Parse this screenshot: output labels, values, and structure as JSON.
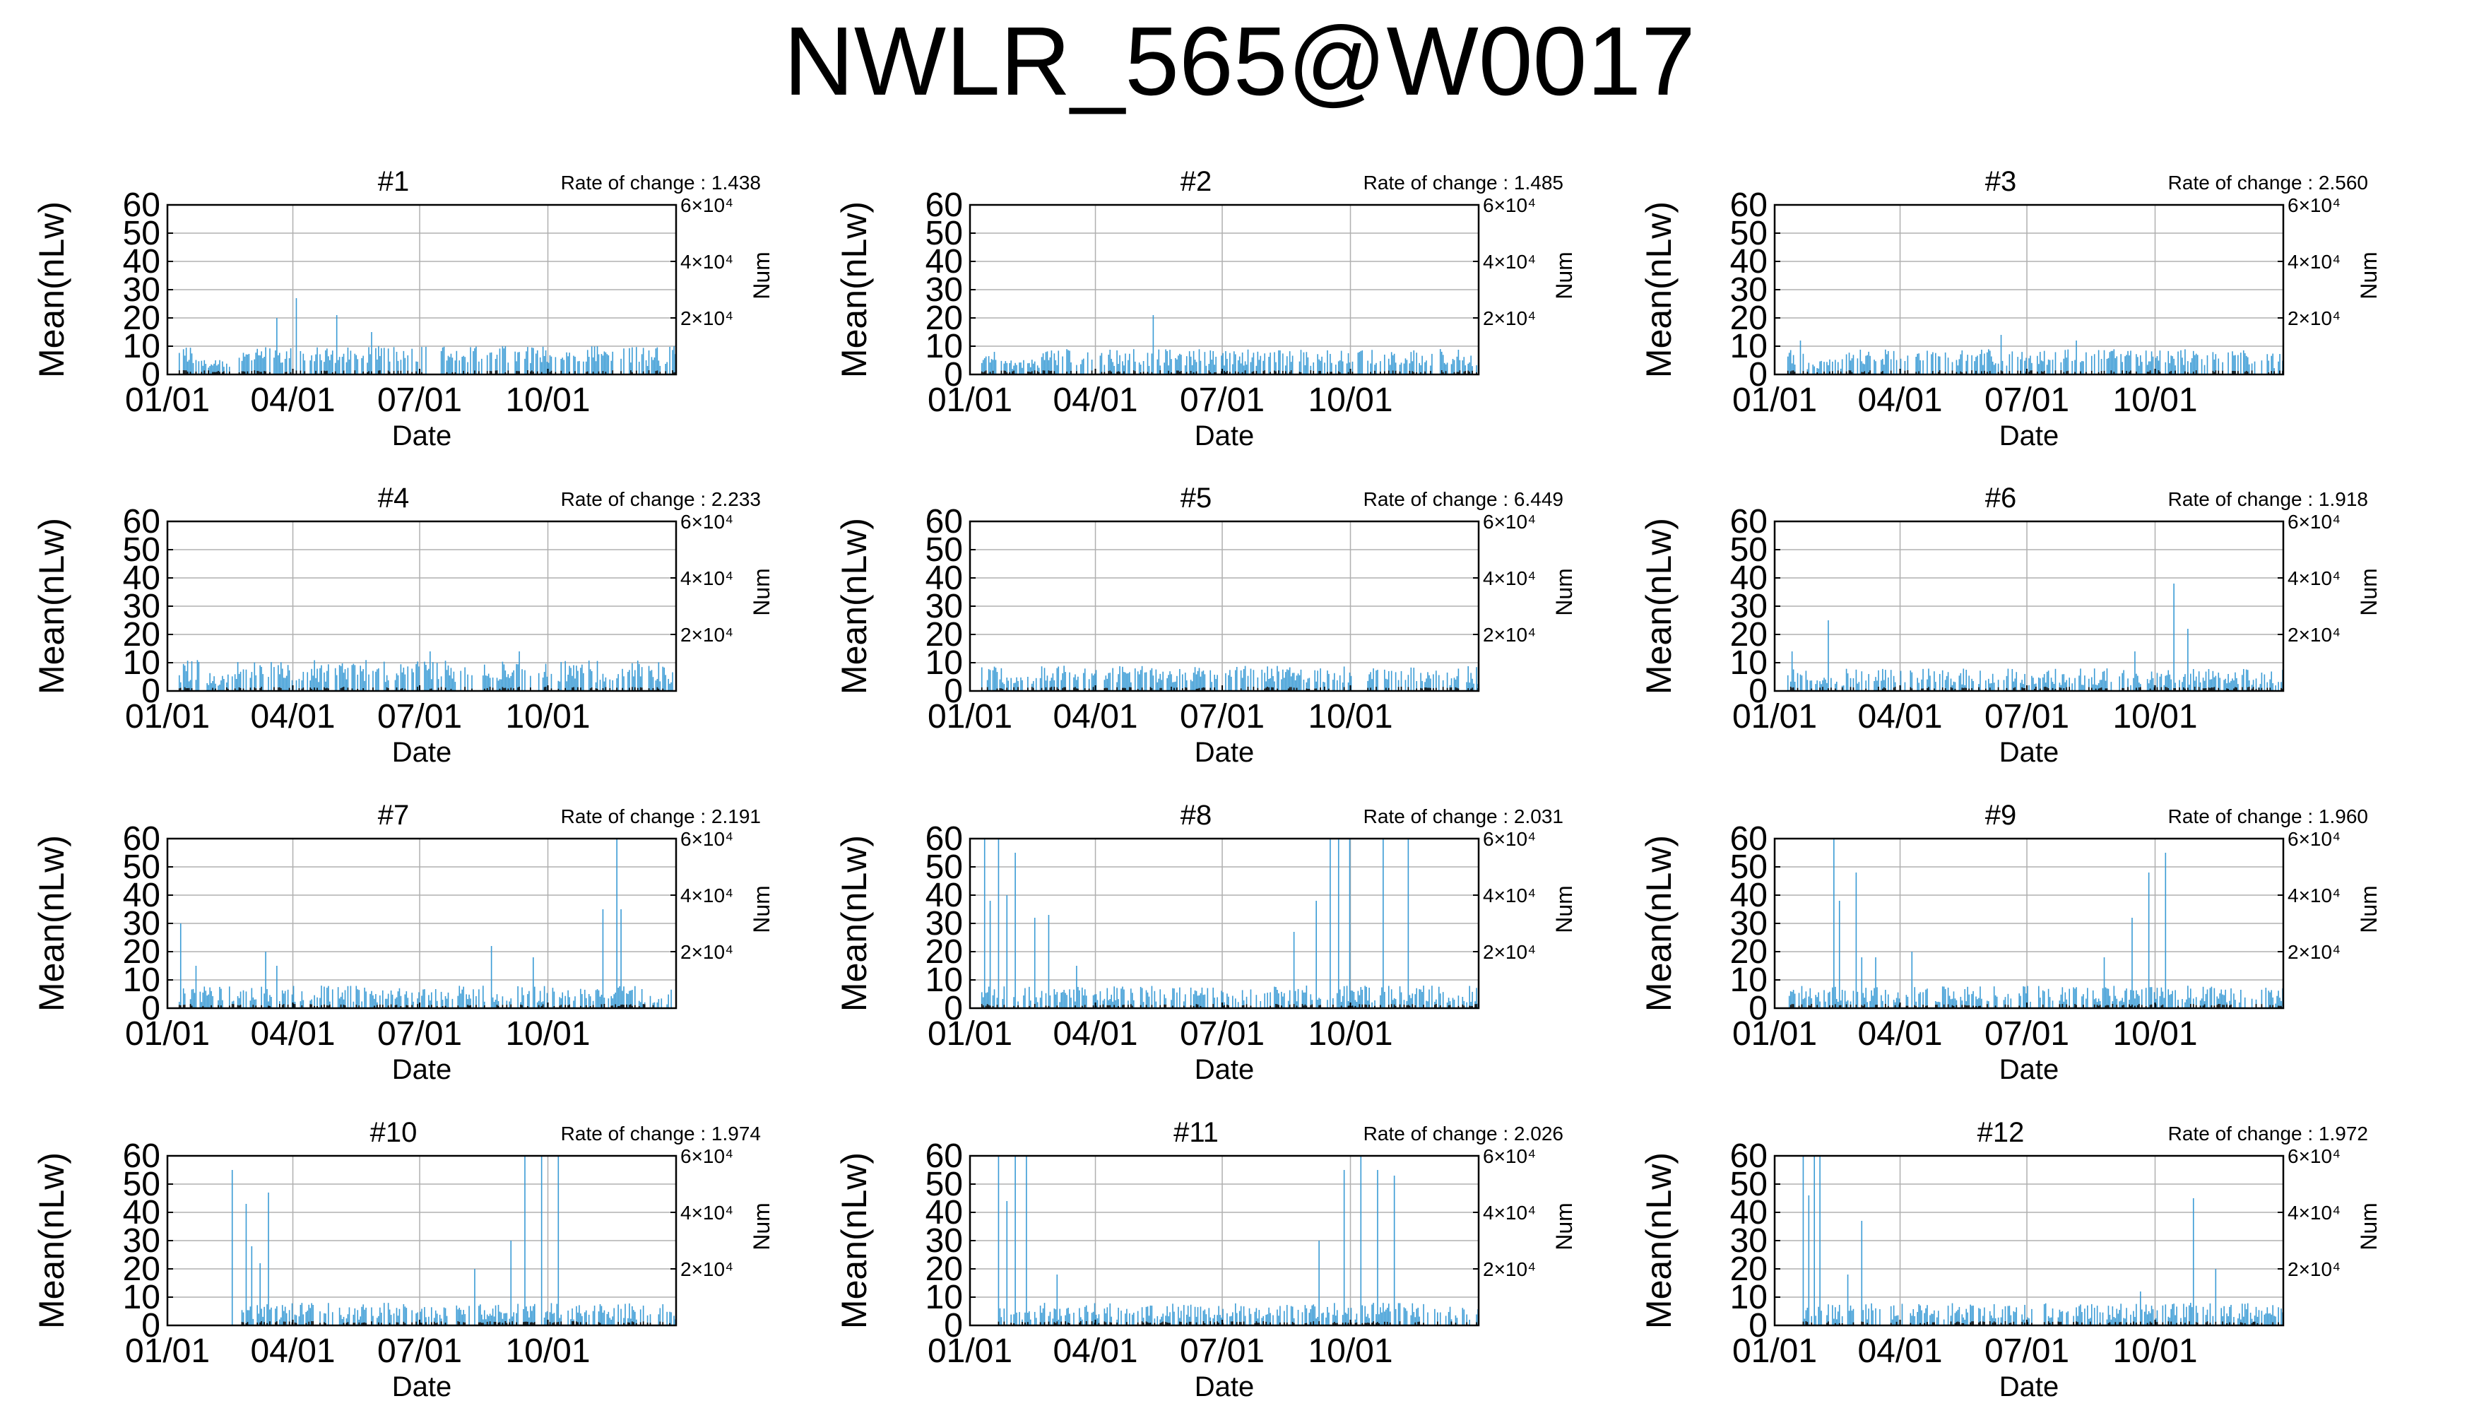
{
  "figure": {
    "title": "NWLR_565@W0017"
  },
  "axis_labels": {
    "ylabel_left": "Mean(nLw)",
    "ylabel_right": "Num",
    "xlabel": "Date",
    "rate_prefix": "Rate of change : "
  },
  "colors": {
    "bars": "#3a9bd5",
    "count_bars": "#000000",
    "grid": "#b0b0b0",
    "frame": "#000000"
  },
  "chart_data": [
    {
      "type": "bar",
      "title": "#1",
      "rate_of_change": "1.438",
      "x_ticks": [
        "01/01",
        "04/01",
        "07/01",
        "10/01"
      ],
      "ylim": [
        0,
        60
      ],
      "y_ticks": [
        0,
        10,
        20,
        30,
        40,
        50,
        60
      ],
      "y2_ticks": [
        "2×10⁴",
        "4×10⁴",
        "6×10⁴"
      ],
      "grid": true,
      "series": [
        {
          "values_profile": {
            "base": 7,
            "noise": 3,
            "start_day": 8,
            "spikes": [
              [
                78,
                20
              ],
              [
                92,
                27
              ],
              [
                121,
                21
              ],
              [
                146,
                15
              ]
            ]
          }
        }
      ]
    },
    {
      "type": "bar",
      "title": "#2",
      "rate_of_change": "1.485",
      "x_ticks": [
        "01/01",
        "04/01",
        "07/01",
        "10/01"
      ],
      "ylim": [
        0,
        60
      ],
      "y_ticks": [
        0,
        10,
        20,
        30,
        40,
        50,
        60
      ],
      "y2_ticks": [
        "2×10⁴",
        "4×10⁴",
        "6×10⁴"
      ],
      "grid": true,
      "series": [
        {
          "values_profile": {
            "base": 6,
            "noise": 3,
            "start_day": 8,
            "spikes": [
              [
                131,
                21
              ]
            ]
          }
        }
      ]
    },
    {
      "type": "bar",
      "title": "#3",
      "rate_of_change": "2.560",
      "x_ticks": [
        "01/01",
        "04/01",
        "07/01",
        "10/01"
      ],
      "ylim": [
        0,
        60
      ],
      "y_ticks": [
        0,
        10,
        20,
        30,
        40,
        50,
        60
      ],
      "y2_ticks": [
        "2×10⁴",
        "4×10⁴",
        "6×10⁴"
      ],
      "grid": true,
      "series": [
        {
          "values_profile": {
            "base": 6,
            "noise": 3,
            "start_day": 8,
            "spikes": [
              [
                18,
                12
              ],
              [
                162,
                14
              ],
              [
                216,
                12
              ]
            ]
          }
        }
      ]
    },
    {
      "type": "bar",
      "title": "#4",
      "rate_of_change": "2.233",
      "x_ticks": [
        "01/01",
        "04/01",
        "07/01",
        "10/01"
      ],
      "ylim": [
        0,
        60
      ],
      "y_ticks": [
        0,
        10,
        20,
        30,
        40,
        50,
        60
      ],
      "y2_ticks": [
        "2×10⁴",
        "4×10⁴",
        "6×10⁴"
      ],
      "grid": true,
      "series": [
        {
          "values_profile": {
            "base": 7,
            "noise": 4,
            "start_day": 8,
            "spikes": [
              [
                188,
                14
              ],
              [
                252,
                14
              ]
            ]
          }
        }
      ]
    },
    {
      "type": "bar",
      "title": "#5",
      "rate_of_change": "6.449",
      "x_ticks": [
        "01/01",
        "04/01",
        "07/01",
        "10/01"
      ],
      "ylim": [
        0,
        60
      ],
      "y_ticks": [
        0,
        10,
        20,
        30,
        40,
        50,
        60
      ],
      "y2_ticks": [
        "2×10⁴",
        "4×10⁴",
        "6×10⁴"
      ],
      "grid": true,
      "series": [
        {
          "values_profile": {
            "base": 6,
            "noise": 3,
            "start_day": 8,
            "spikes": []
          }
        }
      ]
    },
    {
      "type": "bar",
      "title": "#6",
      "rate_of_change": "1.918",
      "x_ticks": [
        "01/01",
        "04/01",
        "07/01",
        "10/01"
      ],
      "ylim": [
        0,
        60
      ],
      "y_ticks": [
        0,
        10,
        20,
        30,
        40,
        50,
        60
      ],
      "y2_ticks": [
        "2×10⁴",
        "4×10⁴",
        "6×10⁴"
      ],
      "grid": true,
      "series": [
        {
          "values_profile": {
            "base": 5,
            "noise": 3,
            "start_day": 8,
            "spikes": [
              [
                12,
                14
              ],
              [
                38,
                25
              ],
              [
                258,
                14
              ],
              [
                286,
                38
              ],
              [
                296,
                22
              ]
            ]
          }
        }
      ]
    },
    {
      "type": "bar",
      "title": "#7",
      "rate_of_change": "2.191",
      "x_ticks": [
        "01/01",
        "04/01",
        "07/01",
        "10/01"
      ],
      "ylim": [
        0,
        60
      ],
      "y_ticks": [
        0,
        10,
        20,
        30,
        40,
        50,
        60
      ],
      "y2_ticks": [
        "2×10⁴",
        "4×10⁴",
        "6×10⁴"
      ],
      "grid": true,
      "series": [
        {
          "values_profile": {
            "base": 5,
            "noise": 3,
            "start_day": 8,
            "spikes": [
              [
                9,
                30
              ],
              [
                20,
                15
              ],
              [
                70,
                20
              ],
              [
                78,
                15
              ],
              [
                232,
                22
              ],
              [
                262,
                18
              ],
              [
                312,
                35
              ],
              [
                322,
                60
              ],
              [
                325,
                35
              ]
            ]
          }
        }
      ]
    },
    {
      "type": "bar",
      "title": "#8",
      "rate_of_change": "2.031",
      "x_ticks": [
        "01/01",
        "04/01",
        "07/01",
        "10/01"
      ],
      "ylim": [
        0,
        60
      ],
      "y_ticks": [
        0,
        10,
        20,
        30,
        40,
        50,
        60
      ],
      "y2_ticks": [
        "2×10⁴",
        "4×10⁴",
        "6×10⁴"
      ],
      "grid": true,
      "series": [
        {
          "values_profile": {
            "base": 5,
            "noise": 3,
            "start_day": 8,
            "spikes": [
              [
                10,
                60
              ],
              [
                14,
                38
              ],
              [
                20,
                60
              ],
              [
                26,
                40
              ],
              [
                32,
                55
              ],
              [
                46,
                32
              ],
              [
                56,
                33
              ],
              [
                76,
                15
              ],
              [
                232,
                27
              ],
              [
                248,
                38
              ],
              [
                258,
                60
              ],
              [
                264,
                60
              ],
              [
                272,
                60
              ],
              [
                296,
                60
              ],
              [
                314,
                60
              ]
            ]
          }
        }
      ]
    },
    {
      "type": "bar",
      "title": "#9",
      "rate_of_change": "1.960",
      "x_ticks": [
        "01/01",
        "04/01",
        "07/01",
        "10/01"
      ],
      "ylim": [
        0,
        60
      ],
      "y_ticks": [
        0,
        10,
        20,
        30,
        40,
        50,
        60
      ],
      "y2_ticks": [
        "2×10⁴",
        "4×10⁴",
        "6×10⁴"
      ],
      "grid": true,
      "series": [
        {
          "values_profile": {
            "base": 5,
            "noise": 3,
            "start_day": 8,
            "spikes": [
              [
                42,
                60
              ],
              [
                46,
                38
              ],
              [
                58,
                48
              ],
              [
                62,
                18
              ],
              [
                72,
                18
              ],
              [
                98,
                20
              ],
              [
                236,
                18
              ],
              [
                256,
                32
              ],
              [
                268,
                48
              ],
              [
                280,
                55
              ]
            ]
          }
        }
      ]
    },
    {
      "type": "bar",
      "title": "#10",
      "rate_of_change": "1.974",
      "x_ticks": [
        "01/01",
        "04/01",
        "07/01",
        "10/01"
      ],
      "ylim": [
        0,
        60
      ],
      "y_ticks": [
        0,
        10,
        20,
        30,
        40,
        50,
        60
      ],
      "y2_ticks": [
        "2×10⁴",
        "4×10⁴",
        "6×10⁴"
      ],
      "grid": true,
      "series": [
        {
          "values_profile": {
            "base": 5,
            "noise": 3,
            "start_day": 46,
            "spikes": [
              [
                46,
                55
              ],
              [
                56,
                43
              ],
              [
                60,
                28
              ],
              [
                66,
                22
              ],
              [
                72,
                47
              ],
              [
                220,
                20
              ],
              [
                246,
                30
              ],
              [
                256,
                60
              ],
              [
                268,
                60
              ],
              [
                280,
                60
              ]
            ]
          }
        }
      ]
    },
    {
      "type": "bar",
      "title": "#11",
      "rate_of_change": "2.026",
      "x_ticks": [
        "01/01",
        "04/01",
        "07/01",
        "10/01"
      ],
      "ylim": [
        0,
        60
      ],
      "y_ticks": [
        0,
        10,
        20,
        30,
        40,
        50,
        60
      ],
      "y2_ticks": [
        "2×10⁴",
        "4×10⁴",
        "6×10⁴"
      ],
      "grid": true,
      "series": [
        {
          "values_profile": {
            "base": 5,
            "noise": 3,
            "start_day": 20,
            "spikes": [
              [
                20,
                60
              ],
              [
                26,
                44
              ],
              [
                32,
                60
              ],
              [
                40,
                60
              ],
              [
                62,
                18
              ],
              [
                250,
                30
              ],
              [
                268,
                55
              ],
              [
                280,
                60
              ],
              [
                292,
                55
              ],
              [
                304,
                53
              ]
            ]
          }
        }
      ]
    },
    {
      "type": "bar",
      "title": "#12",
      "rate_of_change": "1.972",
      "x_ticks": [
        "01/01",
        "04/01",
        "07/01",
        "10/01"
      ],
      "ylim": [
        0,
        60
      ],
      "y_ticks": [
        0,
        10,
        20,
        30,
        40,
        50,
        60
      ],
      "y2_ticks": [
        "2×10⁴",
        "4×10⁴",
        "6×10⁴"
      ],
      "grid": true,
      "series": [
        {
          "values_profile": {
            "base": 5,
            "noise": 3,
            "start_day": 20,
            "spikes": [
              [
                20,
                60
              ],
              [
                24,
                46
              ],
              [
                28,
                60
              ],
              [
                32,
                60
              ],
              [
                52,
                18
              ],
              [
                62,
                37
              ],
              [
                262,
                12
              ],
              [
                300,
                45
              ],
              [
                316,
                20
              ]
            ]
          }
        }
      ]
    }
  ]
}
